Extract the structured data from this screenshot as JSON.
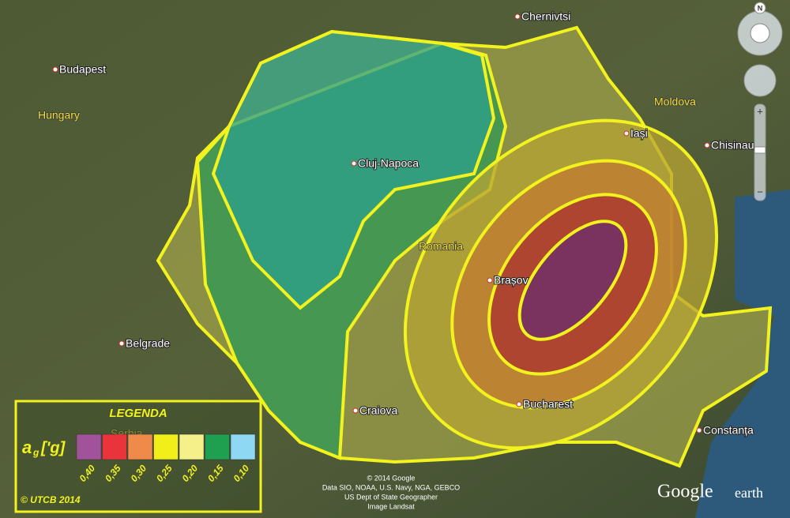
{
  "places": [
    {
      "label": "Chernivtsi"
    },
    {
      "label": "Budapest"
    },
    {
      "label": "Iași"
    },
    {
      "label": "Chisinau"
    },
    {
      "label": "Cluj-Napoca"
    },
    {
      "label": "Brașov"
    },
    {
      "label": "Belgrade"
    },
    {
      "label": "Craiova"
    },
    {
      "label": "Bucharest"
    },
    {
      "label": "Constanța"
    }
  ],
  "regions": [
    {
      "label": "Hungary"
    },
    {
      "label": "Moldova"
    },
    {
      "label": "Romania"
    },
    {
      "label": "Serbia"
    }
  ],
  "legend": {
    "title": "LEGENDA",
    "symbol": "a",
    "subscript": "g",
    "unit": "['g]",
    "items": [
      {
        "label": "0,40",
        "color": "#a0529a"
      },
      {
        "label": "0,35",
        "color": "#e8343a"
      },
      {
        "label": "0,30",
        "color": "#f08a4a"
      },
      {
        "label": "0,25",
        "color": "#f2ee1a"
      },
      {
        "label": "0,20",
        "color": "#f6f08a"
      },
      {
        "label": "0,15",
        "color": "#1fa050"
      },
      {
        "label": "0,10",
        "color": "#8fd8f4"
      }
    ],
    "credit": "© UTCB 2014"
  },
  "attribution": [
    "© 2014 Google",
    "Data SIO, NOAA, U.S. Navy, NGA, GEBCO",
    "US Dept of State Geographer",
    "Image Landsat"
  ],
  "logo": {
    "brand": "Google",
    "product": "earth"
  },
  "compass": "N"
}
